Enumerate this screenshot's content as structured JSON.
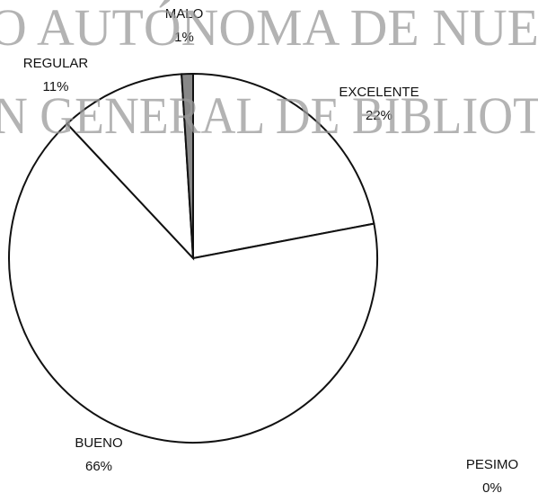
{
  "chart_data": {
    "type": "pie",
    "categories": [
      "EXCELENTE",
      "BUENO",
      "REGULAR",
      "MALO",
      "PESIMO"
    ],
    "values": [
      22,
      66,
      11,
      1,
      0
    ],
    "value_labels": [
      "22%",
      "66%",
      "11%",
      "1%",
      "0%"
    ],
    "colors": [
      "#ffffff",
      "#ffffff",
      "#ffffff",
      "#888888",
      "#ffffff"
    ],
    "watermark": [
      "O AUTÓNOMA DE NUE",
      "N GENERAL DE BIBLIOT"
    ]
  }
}
